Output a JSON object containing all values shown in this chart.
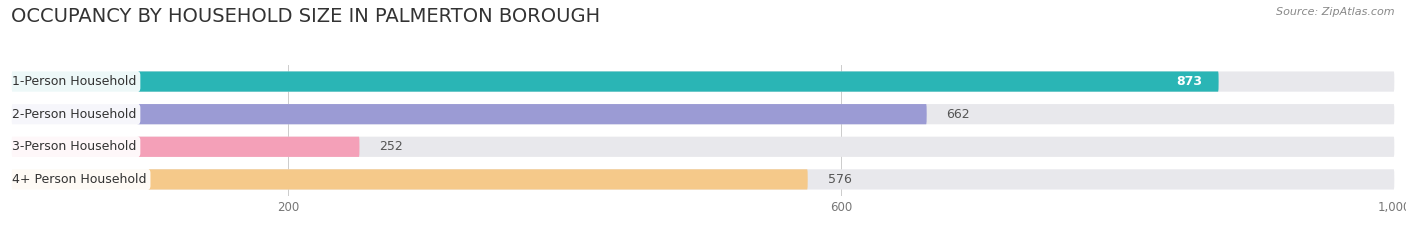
{
  "title": "OCCUPANCY BY HOUSEHOLD SIZE IN PALMERTON BOROUGH",
  "source": "Source: ZipAtlas.com",
  "categories": [
    "1-Person Household",
    "2-Person Household",
    "3-Person Household",
    "4+ Person Household"
  ],
  "values": [
    873,
    662,
    252,
    576
  ],
  "bar_colors": [
    "#2ab5b5",
    "#9b9bd4",
    "#f4a0b8",
    "#f5c98a"
  ],
  "bar_bg_color": "#e8e8ec",
  "xlim": [
    0,
    1000
  ],
  "xticks": [
    200,
    600,
    1000
  ],
  "xtick_labels": [
    "200",
    "600",
    "1,000"
  ],
  "background_color": "#ffffff",
  "title_fontsize": 14,
  "source_fontsize": 8,
  "bar_label_fontsize": 9,
  "value_fontsize": 9,
  "figsize": [
    14.06,
    2.33
  ],
  "dpi": 100
}
